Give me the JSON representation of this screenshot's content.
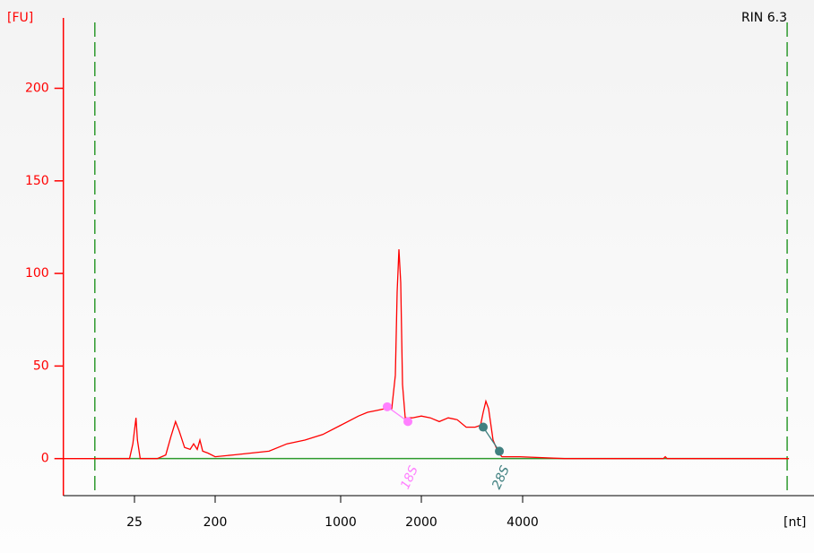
{
  "chart_data": {
    "type": "line",
    "annotation": "RIN 6.3",
    "y_label": "[FU]",
    "x_label": "[nt]",
    "color": "#ff0000",
    "axis_color": "#ff0000",
    "baseline_color": "#2e9a2e",
    "x": [
      4,
      22,
      24,
      26,
      27,
      29,
      45,
      56,
      64,
      72,
      79,
      91,
      105,
      115,
      126,
      135,
      145,
      166,
      200,
      252,
      317,
      399,
      502,
      632,
      795,
      1000,
      1166,
      1260,
      1361,
      1470,
      1551,
      1600,
      1624,
      1650,
      1675,
      1701,
      1741,
      1852,
      2000,
      2127,
      2261,
      2404,
      2556,
      2718,
      2890,
      2998,
      3054,
      3111,
      3168,
      3267,
      3390,
      3474,
      3926,
      5336,
      10480,
      10614,
      10746,
      24740
    ],
    "values": [
      0,
      0,
      8,
      22,
      10,
      0,
      0,
      2,
      12,
      20,
      15,
      6,
      5,
      8,
      5,
      10,
      4,
      3,
      1,
      2,
      3,
      4,
      8,
      10,
      13,
      18,
      23,
      25,
      26,
      27,
      27,
      45,
      90,
      113,
      95,
      40,
      22,
      22,
      23,
      22,
      20,
      22,
      21,
      17,
      17,
      18,
      25,
      31,
      27,
      10,
      3,
      1,
      1,
      0,
      0,
      1,
      0,
      0
    ],
    "xlim": [
      4,
      30000
    ],
    "xticks": [
      25,
      200,
      1000,
      2000,
      4000
    ],
    "ylim": [
      -20,
      238
    ],
    "yticks": [
      0,
      50,
      100,
      150,
      200
    ],
    "reference_lines": {
      "color": "#2e9a2e",
      "x": [
        9,
        24440
      ]
    },
    "fragments": [
      {
        "label": "18S",
        "color": "#ff80ff",
        "x": [
          1492,
          1782
        ],
        "values": [
          28,
          20
        ]
      },
      {
        "label": "28S",
        "color": "#408080",
        "x": [
          3054,
          3411
        ],
        "values": [
          17,
          4
        ]
      }
    ]
  }
}
